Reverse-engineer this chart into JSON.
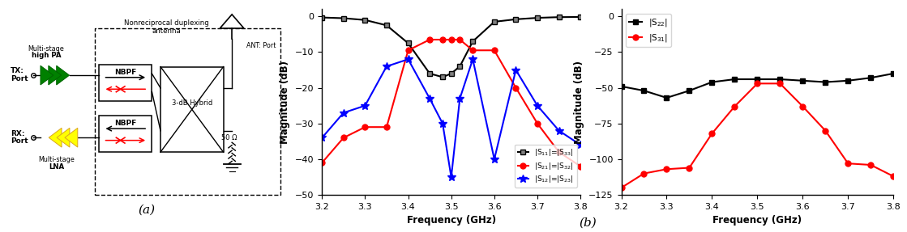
{
  "fig_width": 11.19,
  "fig_height": 2.87,
  "plot1": {
    "freq": [
      3.2,
      3.25,
      3.3,
      3.35,
      3.4,
      3.45,
      3.48,
      3.5,
      3.52,
      3.55,
      3.6,
      3.65,
      3.7,
      3.75,
      3.8
    ],
    "S11": [
      -0.3,
      -0.5,
      -1.0,
      -2.5,
      -7.5,
      -16.0,
      -17.0,
      -16.0,
      -14.0,
      -7.0,
      -1.5,
      -0.8,
      -0.4,
      -0.2,
      -0.15
    ],
    "S21": [
      -41,
      -34,
      -31,
      -31,
      -9.5,
      -6.5,
      -6.5,
      -6.5,
      -6.5,
      -9.5,
      -9.5,
      -20,
      -30,
      -38,
      -42
    ],
    "S12": [
      -34,
      -27,
      -25,
      -14,
      -12,
      -23,
      -30,
      -45,
      -23,
      -12,
      -40,
      -15,
      -25,
      -32,
      -36
    ],
    "xlabel": "Frequency (GHz)",
    "ylabel": "Magnitude (dB)",
    "xlim": [
      3.2,
      3.8
    ],
    "ylim": [
      -50,
      2
    ],
    "yticks": [
      0,
      -10,
      -20,
      -30,
      -40,
      -50
    ],
    "xticks": [
      3.2,
      3.3,
      3.4,
      3.5,
      3.6,
      3.7,
      3.8
    ],
    "legend": [
      "|S$_{11}$|=|S$_{33}$|",
      "|S$_{21}$|=|S$_{32}$|",
      "|S$_{12}$|=|S$_{23}$|"
    ],
    "colors": [
      "black",
      "red",
      "blue"
    ],
    "markers": [
      "s",
      "o",
      "*"
    ]
  },
  "plot2": {
    "freq": [
      3.2,
      3.25,
      3.3,
      3.35,
      3.4,
      3.45,
      3.5,
      3.55,
      3.6,
      3.65,
      3.7,
      3.75,
      3.8
    ],
    "S22": [
      -49,
      -52,
      -57,
      -52,
      -46,
      -44,
      -44,
      -44,
      -45,
      -46,
      -45,
      -43,
      -40
    ],
    "S31": [
      -120,
      -110,
      -107,
      -106,
      -82,
      -63,
      -47,
      -47,
      -63,
      -80,
      -103,
      -104,
      -112
    ],
    "xlabel": "Frequency (GHz)",
    "ylabel": "Magnitude (dB)",
    "xlim": [
      3.2,
      3.8
    ],
    "ylim": [
      -125,
      5
    ],
    "yticks": [
      0,
      -25,
      -50,
      -75,
      -100,
      -125
    ],
    "xticks": [
      3.2,
      3.3,
      3.4,
      3.5,
      3.6,
      3.7,
      3.8
    ],
    "legend": [
      "|S$_{22}$|",
      "|S$_{31}$|"
    ],
    "colors": [
      "black",
      "red"
    ],
    "markers": [
      "s",
      "o"
    ]
  },
  "label_a": "(a)",
  "label_b": "(b)"
}
